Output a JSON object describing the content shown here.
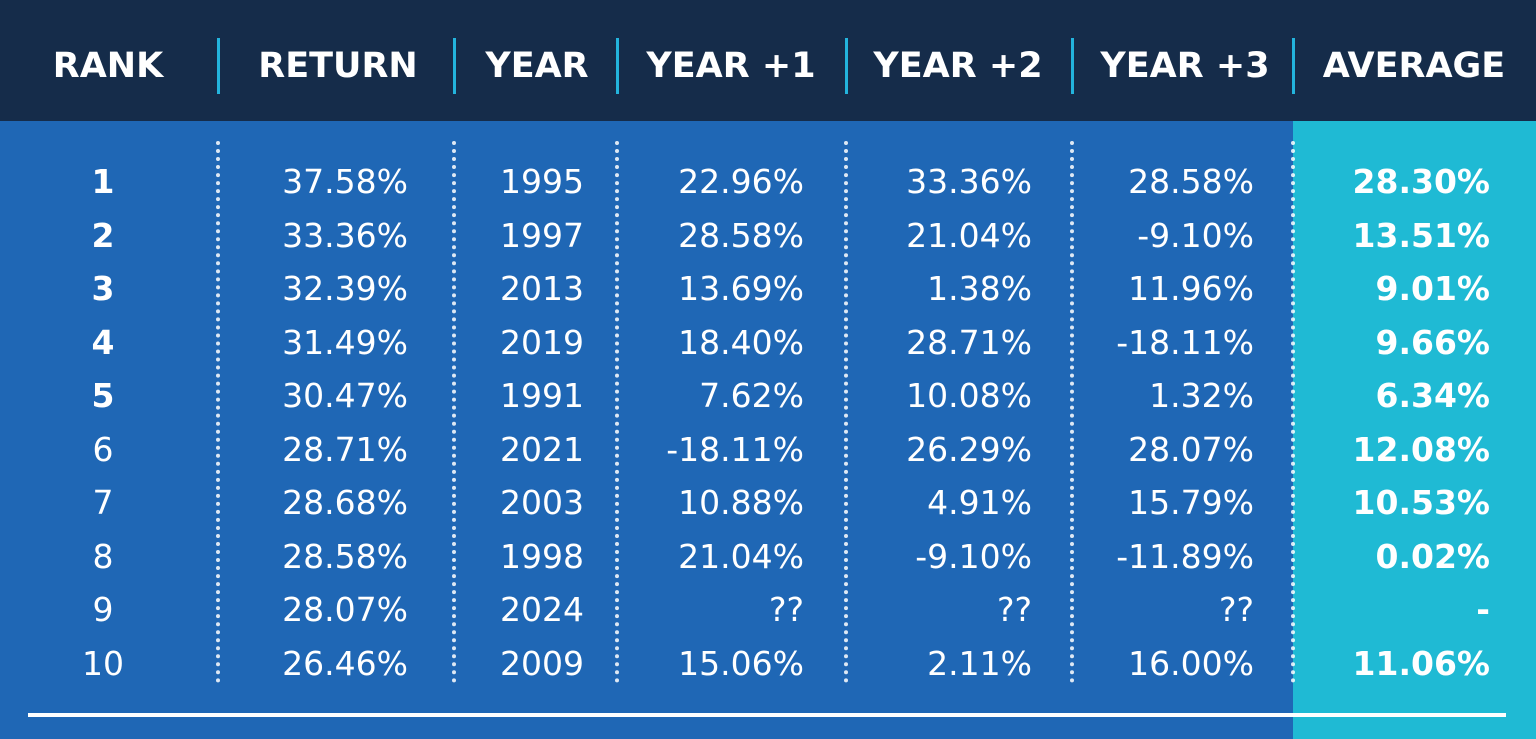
{
  "chart_data": {
    "type": "table",
    "columns": [
      "RANK",
      "RETURN",
      "YEAR",
      "YEAR +1",
      "YEAR +2",
      "YEAR +3",
      "AVERAGE"
    ],
    "rows": [
      [
        "1",
        "37.58%",
        "1995",
        "22.96%",
        "33.36%",
        "28.58%",
        "28.30%"
      ],
      [
        "2",
        "33.36%",
        "1997",
        "28.58%",
        "21.04%",
        "-9.10%",
        "13.51%"
      ],
      [
        "3",
        "32.39%",
        "2013",
        "13.69%",
        "1.38%",
        "11.96%",
        "9.01%"
      ],
      [
        "4",
        "31.49%",
        "2019",
        "18.40%",
        "28.71%",
        "-18.11%",
        "9.66%"
      ],
      [
        "5",
        "30.47%",
        "1991",
        "7.62%",
        "10.08%",
        "1.32%",
        "6.34%"
      ],
      [
        "6",
        "28.71%",
        "2021",
        "-18.11%",
        "26.29%",
        "28.07%",
        "12.08%"
      ],
      [
        "7",
        "28.68%",
        "2003",
        "10.88%",
        "4.91%",
        "15.79%",
        "10.53%"
      ],
      [
        "8",
        "28.58%",
        "1998",
        "21.04%",
        "-9.10%",
        "-11.89%",
        "0.02%"
      ],
      [
        "9",
        "28.07%",
        "2024",
        "??",
        "??",
        "??",
        "-"
      ],
      [
        "10",
        "26.46%",
        "2009",
        "15.06%",
        "2.11%",
        "16.00%",
        "11.06%"
      ]
    ],
    "bold_rank_rows": [
      1,
      2,
      3,
      4,
      5
    ],
    "highlight_column": "AVERAGE"
  },
  "colors": {
    "header_bg": "#152c4a",
    "body_bg": "#1f67b5",
    "average_bg": "#1fbad4",
    "separator": "#23b4dd",
    "text": "#ffffff"
  }
}
